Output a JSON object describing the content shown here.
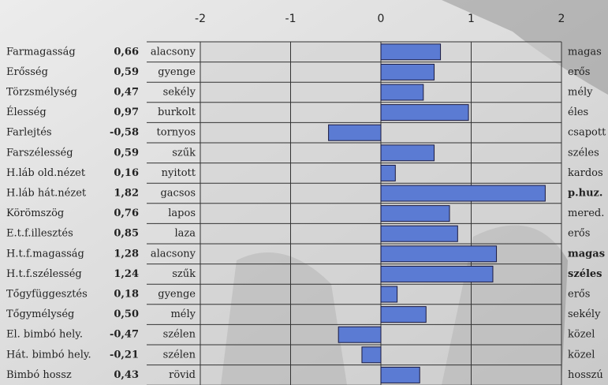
{
  "chart_data": {
    "type": "bar",
    "orientation": "horizontal",
    "categories": [
      "Farmagasság",
      "Erősség",
      "Törzsmélység",
      "Élesség",
      "Farlejtés",
      "Farszélesség",
      "H.láb old.nézet",
      "H.láb hát.nézet",
      "Körömszög",
      "E.t.f.illesztés",
      "H.t.f.magasság",
      "H.t.f.szélesség",
      "Tőgyfüggesztés",
      "Tőgymélység",
      "El. bimbó hely.",
      "Hát. bimbó hely.",
      "Bimbó hossz"
    ],
    "values": [
      0.66,
      0.59,
      0.47,
      0.97,
      -0.58,
      0.59,
      0.16,
      1.82,
      0.76,
      0.85,
      1.28,
      1.24,
      0.18,
      0.5,
      -0.47,
      -0.21,
      0.43
    ],
    "value_labels": [
      "0,66",
      "0,59",
      "0,47",
      "0,97",
      "-0,58",
      "0,59",
      "0,16",
      "1,82",
      "0,76",
      "0,85",
      "1,28",
      "1,24",
      "0,18",
      "0,50",
      "-0,47",
      "-0,21",
      "0,43"
    ],
    "left_labels": [
      "alacsony",
      "gyenge",
      "sekély",
      "burkolt",
      "tornyos",
      "szűk",
      "nyitott",
      "gacsos",
      "lapos",
      "laza",
      "alacsony",
      "szűk",
      "gyenge",
      "mély",
      "szélen",
      "szélen",
      "rövid"
    ],
    "right_labels": [
      "magas",
      "erős",
      "mély",
      "éles",
      "csapott",
      "széles",
      "kardos",
      "p.huz.",
      "mered.",
      "erős",
      "magas",
      "széles",
      "erős",
      "sekély",
      "közel",
      "közel",
      "hosszú"
    ],
    "right_label_bold": [
      false,
      false,
      false,
      false,
      false,
      false,
      false,
      true,
      false,
      false,
      true,
      true,
      false,
      false,
      false,
      false,
      false
    ],
    "color": "#5b7bd3",
    "xlim": [
      -2,
      2
    ],
    "xticks": [
      -2,
      -1,
      0,
      1,
      2
    ],
    "grid": true
  }
}
